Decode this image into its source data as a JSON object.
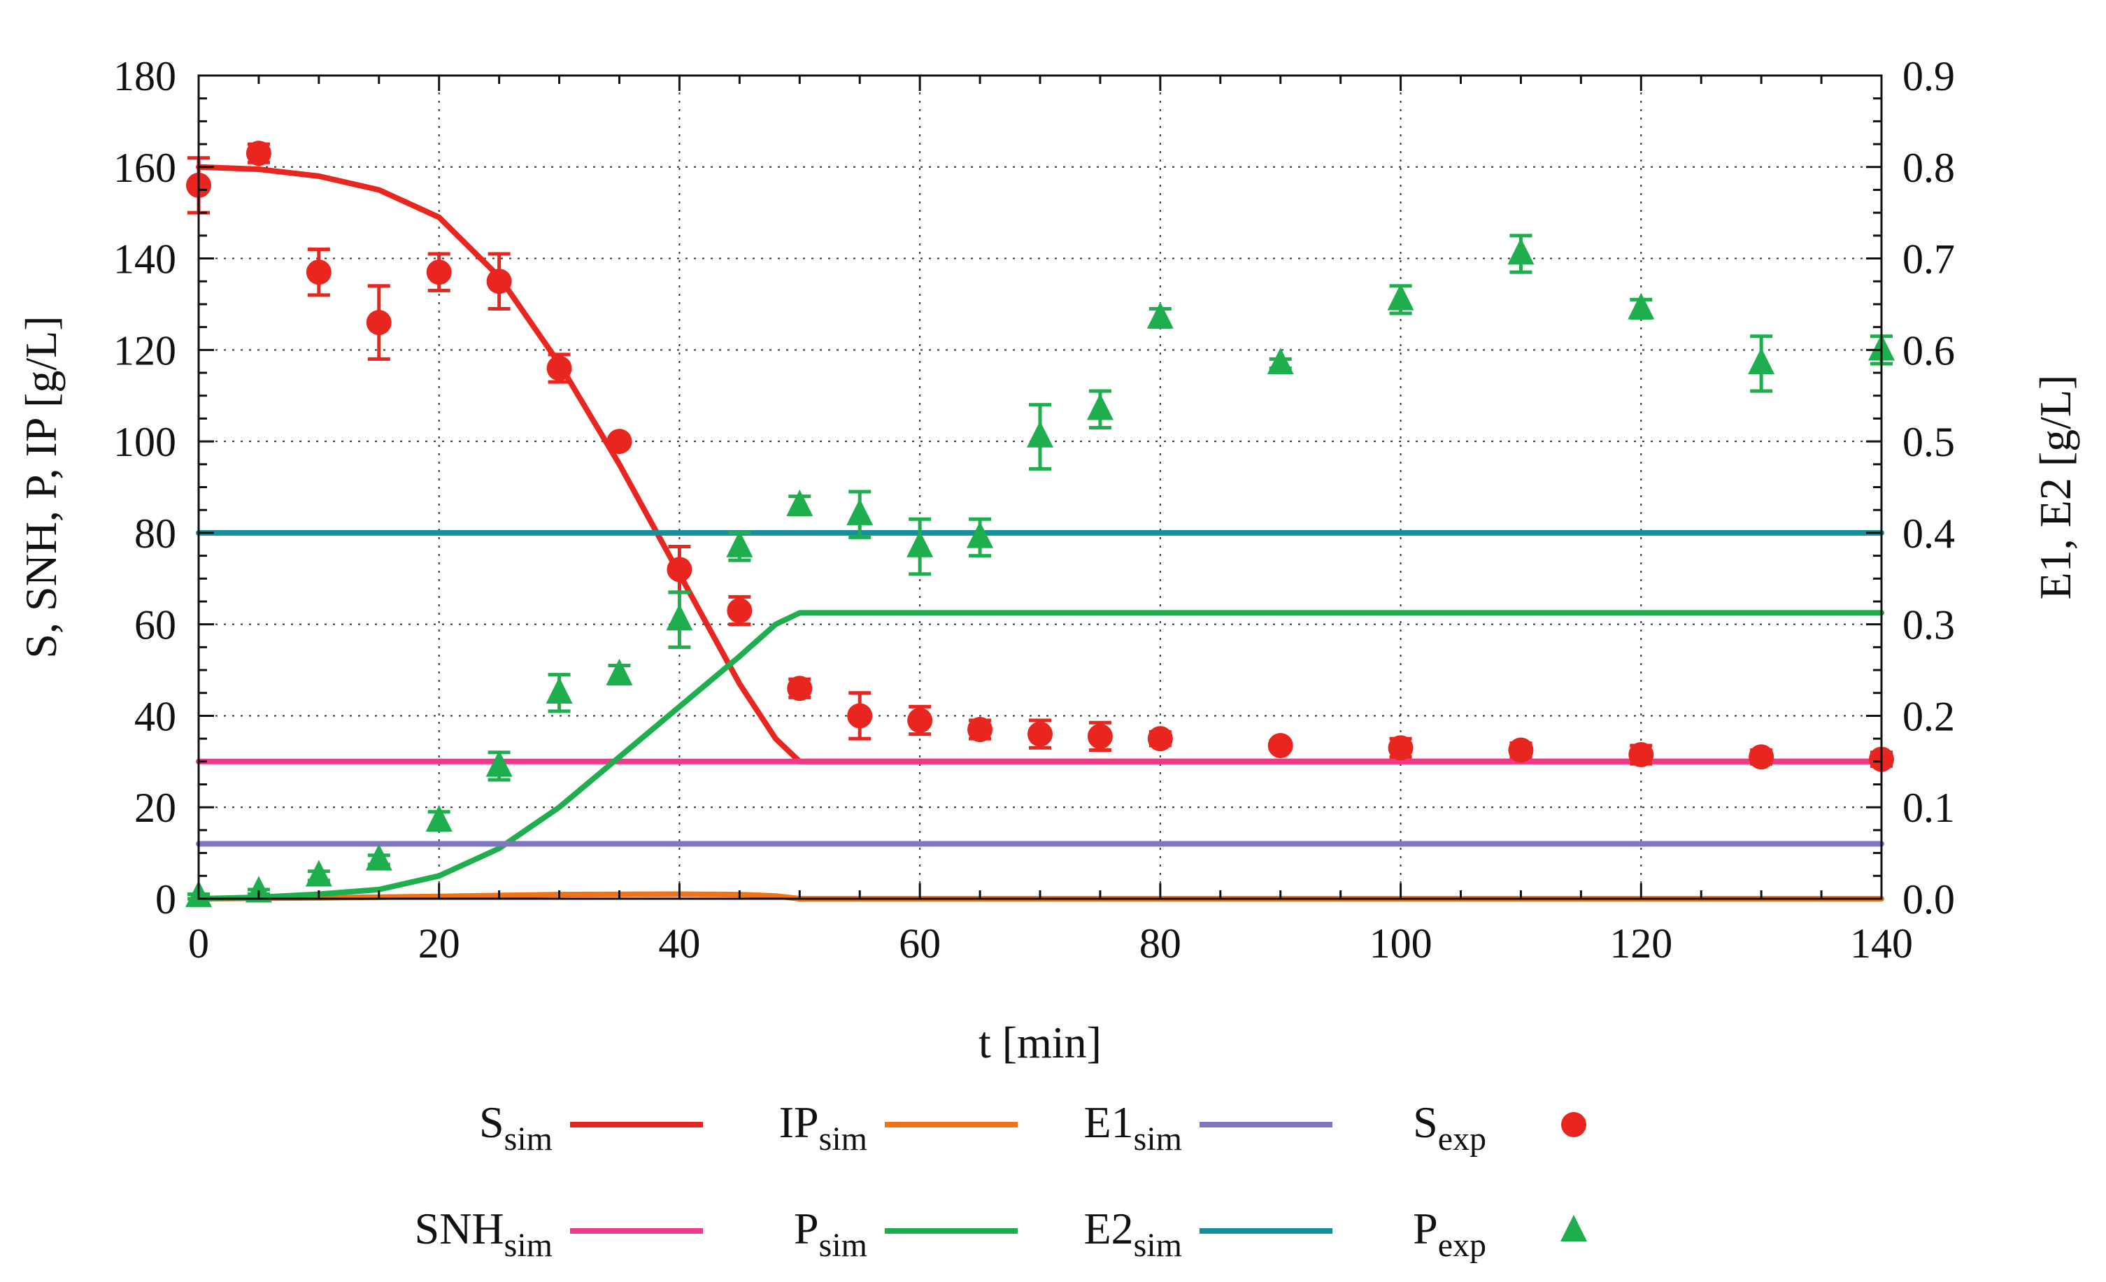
{
  "chart_data": {
    "type": "line+scatter",
    "title": "",
    "xlabel": "t [min]",
    "ylabel_left": "S, SNH, P, IP [g/L]",
    "ylabel_right": "E1, E2 [g/L]",
    "xlim": [
      0,
      140
    ],
    "ylim_left": [
      0,
      180
    ],
    "ylim_right": [
      0.0,
      0.9
    ],
    "grid": true,
    "x_ticks": [
      "0",
      "20",
      "40",
      "60",
      "80",
      "100",
      "120",
      "140"
    ],
    "y_left_ticks": [
      "0",
      "20",
      "40",
      "60",
      "80",
      "100",
      "120",
      "140",
      "160",
      "180"
    ],
    "y_right_ticks": [
      "0.0",
      "0.1",
      "0.2",
      "0.3",
      "0.4",
      "0.5",
      "0.6",
      "0.7",
      "0.8",
      "0.9"
    ],
    "legend_placement": "bottom",
    "series": [
      {
        "id": "S_sim",
        "name": "S",
        "sub": "sim",
        "kind": "line",
        "axis": "left",
        "color": "#e8251e",
        "x": [
          0,
          5,
          10,
          15,
          20,
          25,
          30,
          35,
          40,
          45,
          48,
          50,
          60,
          80,
          100,
          120,
          140
        ],
        "y": [
          160,
          159.5,
          158,
          155,
          149,
          136,
          117,
          95,
          71,
          47,
          35,
          30,
          30,
          30,
          30,
          30,
          30
        ]
      },
      {
        "id": "SNH_sim",
        "name": "SNH",
        "sub": "sim",
        "kind": "line",
        "axis": "left",
        "color": "#f0398a",
        "x": [
          0,
          140
        ],
        "y": [
          30,
          30
        ]
      },
      {
        "id": "IP_sim",
        "name": "IP",
        "sub": "sim",
        "kind": "line",
        "axis": "left",
        "color": "#f07318",
        "x": [
          0,
          10,
          20,
          30,
          40,
          45,
          48,
          50,
          60,
          140
        ],
        "y": [
          0,
          0.2,
          0.5,
          0.9,
          1.0,
          0.9,
          0.6,
          0,
          0,
          0
        ]
      },
      {
        "id": "P_sim",
        "name": "P",
        "sub": "sim",
        "kind": "line",
        "axis": "left",
        "color": "#1fae4d",
        "x": [
          0,
          5,
          10,
          15,
          20,
          25,
          30,
          35,
          40,
          45,
          48,
          50,
          60,
          80,
          100,
          120,
          140
        ],
        "y": [
          0,
          0.3,
          1,
          2,
          5,
          11,
          20,
          31,
          42,
          53,
          60,
          62.5,
          62.5,
          62.5,
          62.5,
          62.5,
          62.5
        ]
      },
      {
        "id": "E1_sim",
        "name": "E1",
        "sub": "sim",
        "kind": "line",
        "axis": "right",
        "color": "#7f77bf",
        "x": [
          0,
          140
        ],
        "y": [
          0.06,
          0.06
        ]
      },
      {
        "id": "E2_sim",
        "name": "E2",
        "sub": "sim",
        "kind": "line",
        "axis": "right",
        "color": "#178f9a",
        "x": [
          0,
          140
        ],
        "y": [
          0.4,
          0.4
        ]
      },
      {
        "id": "S_exp",
        "name": "S",
        "sub": "exp",
        "kind": "scatter",
        "marker": "circle",
        "axis": "left",
        "color": "#e8251e",
        "x": [
          0,
          5,
          10,
          15,
          20,
          25,
          30,
          35,
          40,
          45,
          50,
          55,
          60,
          65,
          70,
          75,
          80,
          90,
          100,
          110,
          120,
          130,
          140
        ],
        "y": [
          156,
          163,
          137,
          126,
          137,
          135,
          116,
          100,
          72,
          63,
          46,
          40,
          39,
          37,
          36,
          35.5,
          35,
          33.5,
          33,
          32.5,
          31.5,
          31,
          30.5
        ],
        "err": [
          6,
          2,
          5,
          8,
          4,
          6,
          3,
          1,
          5,
          3,
          2,
          5,
          3,
          2,
          3,
          3,
          1.5,
          1,
          2,
          1.5,
          2,
          1.5,
          1.5
        ]
      },
      {
        "id": "P_exp",
        "name": "P",
        "sub": "exp",
        "kind": "scatter",
        "marker": "triangle",
        "axis": "left",
        "color": "#1fae4d",
        "x": [
          0,
          5,
          10,
          15,
          20,
          25,
          30,
          35,
          40,
          45,
          50,
          55,
          60,
          65,
          70,
          75,
          80,
          90,
          100,
          110,
          120,
          130,
          140
        ],
        "y": [
          0.5,
          1.5,
          5,
          8.5,
          17,
          29,
          45,
          49,
          61,
          77,
          86,
          84,
          77,
          79,
          101,
          107,
          127,
          117,
          131,
          141,
          129,
          117,
          120
        ],
        "err": [
          0.5,
          0.5,
          1,
          1,
          2,
          3,
          4,
          2,
          6,
          3,
          2,
          5,
          6,
          4,
          7,
          4,
          2,
          1,
          3,
          4,
          2,
          6,
          3
        ]
      }
    ],
    "legend": {
      "rows": [
        [
          {
            "name": "S",
            "sub": "sim",
            "ref": "S_sim"
          },
          {
            "name": "IP",
            "sub": "sim",
            "ref": "IP_sim"
          },
          {
            "name": "E1",
            "sub": "sim",
            "ref": "E1_sim"
          },
          {
            "name": "S",
            "sub": "exp",
            "ref": "S_exp"
          }
        ],
        [
          {
            "name": "SNH",
            "sub": "sim",
            "ref": "SNH_sim"
          },
          {
            "name": "P",
            "sub": "sim",
            "ref": "P_sim"
          },
          {
            "name": "E2",
            "sub": "sim",
            "ref": "E2_sim"
          },
          {
            "name": "P",
            "sub": "exp",
            "ref": "P_exp"
          }
        ]
      ]
    }
  }
}
